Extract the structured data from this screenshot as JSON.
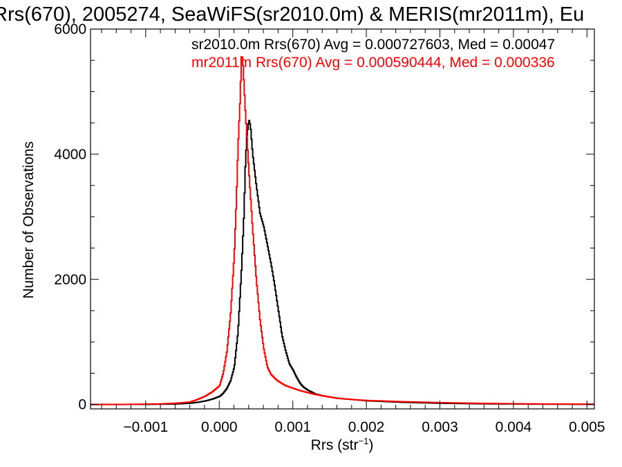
{
  "chart_data": {
    "type": "line",
    "title": "Rrs(670), 2005274, SeaWiFS(sr2010.0m) & MERIS(mr2011m), Eu",
    "xlabel": "Rrs (str",
    "xlabel_sup": "−1",
    "xlabel_close": ")",
    "ylabel": "Number of Observations",
    "xlim": [
      -0.00175,
      0.0051
    ],
    "ylim": [
      -70,
      6000
    ],
    "x_ticks": [
      {
        "value": -0.001,
        "label": "−0.001"
      },
      {
        "value": 0.0,
        "label": "0.000"
      },
      {
        "value": 0.001,
        "label": "0.001"
      },
      {
        "value": 0.002,
        "label": "0.002"
      },
      {
        "value": 0.003,
        "label": "0.003"
      },
      {
        "value": 0.004,
        "label": "0.004"
      },
      {
        "value": 0.005,
        "label": "0.005"
      }
    ],
    "y_ticks": [
      {
        "value": 0,
        "label": "0"
      },
      {
        "value": 2000,
        "label": "2000"
      },
      {
        "value": 4000,
        "label": "4000"
      },
      {
        "value": 6000,
        "label": "6000"
      }
    ],
    "grid": false,
    "legend_placement": "top-right",
    "series": [
      {
        "name": "sr2010.0m Rrs(670) Avg = 0.000727603, Med = 0.00047",
        "color": "#000000",
        "points": [
          [
            -0.00175,
            0
          ],
          [
            -0.001,
            2
          ],
          [
            -0.0006,
            8
          ],
          [
            -0.0004,
            20
          ],
          [
            -0.0003,
            35
          ],
          [
            -0.0002,
            55
          ],
          [
            -0.0001,
            85
          ],
          [
            0.0,
            130
          ],
          [
            5e-05,
            180
          ],
          [
            0.0001,
            260
          ],
          [
            0.00015,
            380
          ],
          [
            0.0002,
            600
          ],
          [
            0.00025,
            1150
          ],
          [
            0.0003,
            2200
          ],
          [
            0.00033,
            3000
          ],
          [
            0.00035,
            3800
          ],
          [
            0.00037,
            4300
          ],
          [
            0.0004,
            4550
          ],
          [
            0.00042,
            4450
          ],
          [
            0.00045,
            4000
          ],
          [
            0.0005,
            3500
          ],
          [
            0.00055,
            3050
          ],
          [
            0.0006,
            2850
          ],
          [
            0.00065,
            2550
          ],
          [
            0.0007,
            2250
          ],
          [
            0.00075,
            1900
          ],
          [
            0.0008,
            1500
          ],
          [
            0.00085,
            1100
          ],
          [
            0.0009,
            850
          ],
          [
            0.00095,
            650
          ],
          [
            0.001,
            550
          ],
          [
            0.00105,
            430
          ],
          [
            0.0011,
            330
          ],
          [
            0.00115,
            270
          ],
          [
            0.0012,
            230
          ],
          [
            0.0013,
            170
          ],
          [
            0.0014,
            140
          ],
          [
            0.0015,
            120
          ],
          [
            0.0016,
            100
          ],
          [
            0.0018,
            80
          ],
          [
            0.002,
            60
          ],
          [
            0.0025,
            35
          ],
          [
            0.003,
            20
          ],
          [
            0.0035,
            12
          ],
          [
            0.004,
            8
          ],
          [
            0.0045,
            5
          ],
          [
            0.0051,
            3
          ]
        ]
      },
      {
        "name": "mr2011m Rrs(670) Avg = 0.000590444, Med = 0.000336",
        "color": "#ff0000",
        "points": [
          [
            -0.00175,
            0
          ],
          [
            -0.0012,
            3
          ],
          [
            -0.0008,
            10
          ],
          [
            -0.0006,
            20
          ],
          [
            -0.0004,
            40
          ],
          [
            -0.0003,
            80
          ],
          [
            -0.0002,
            130
          ],
          [
            -0.0001,
            200
          ],
          [
            0.0,
            300
          ],
          [
            5e-05,
            500
          ],
          [
            0.0001,
            850
          ],
          [
            0.00015,
            1450
          ],
          [
            0.0002,
            2400
          ],
          [
            0.00023,
            3300
          ],
          [
            0.00025,
            4100
          ],
          [
            0.00028,
            4900
          ],
          [
            0.0003,
            5650
          ],
          [
            0.00032,
            5400
          ],
          [
            0.00035,
            4700
          ],
          [
            0.0004,
            3700
          ],
          [
            0.00045,
            2800
          ],
          [
            0.0005,
            2000
          ],
          [
            0.00055,
            1350
          ],
          [
            0.0006,
            900
          ],
          [
            0.00065,
            600
          ],
          [
            0.0007,
            480
          ],
          [
            0.00075,
            420
          ],
          [
            0.0008,
            370
          ],
          [
            0.0009,
            300
          ],
          [
            0.001,
            260
          ],
          [
            0.0011,
            220
          ],
          [
            0.0012,
            190
          ],
          [
            0.0013,
            160
          ],
          [
            0.0014,
            140
          ],
          [
            0.0015,
            120
          ],
          [
            0.0016,
            100
          ],
          [
            0.0018,
            80
          ],
          [
            0.002,
            65
          ],
          [
            0.0025,
            45
          ],
          [
            0.003,
            30
          ],
          [
            0.0035,
            20
          ],
          [
            0.004,
            12
          ],
          [
            0.0045,
            8
          ],
          [
            0.0051,
            5
          ]
        ]
      }
    ]
  }
}
